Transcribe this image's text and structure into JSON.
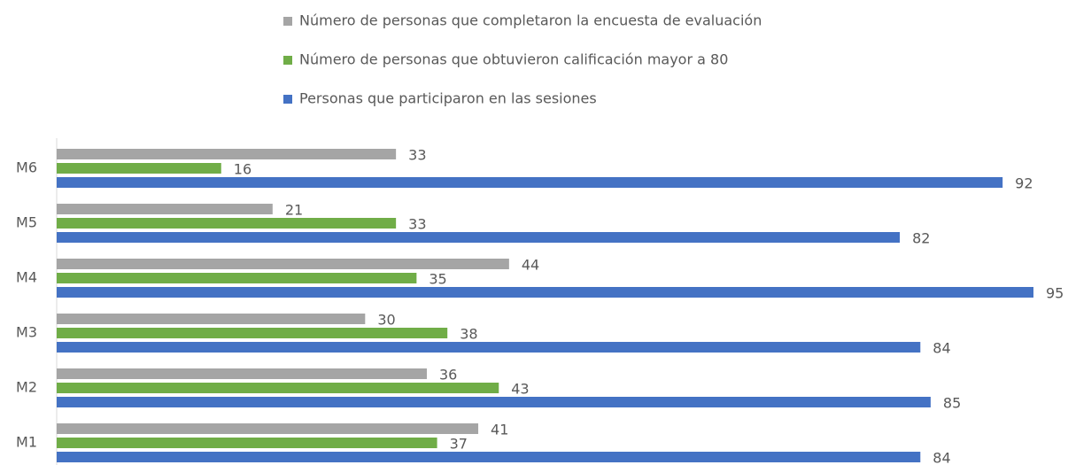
{
  "chart_data": {
    "type": "hbar",
    "categories": [
      "M1",
      "M2",
      "M3",
      "M4",
      "M5",
      "M6"
    ],
    "series": [
      {
        "name": "Número de personas que completaron la encuesta de evaluación",
        "color": "#a5a5a5",
        "values": [
          41,
          36,
          30,
          44,
          21,
          33
        ]
      },
      {
        "name": "Número de personas que obtuvieron calificación mayor a 80",
        "color": "#70ad47",
        "values": [
          37,
          43,
          38,
          35,
          33,
          16
        ]
      },
      {
        "name": "Personas que participaron en las sesiones",
        "color": "#4472c4",
        "values": [
          84,
          85,
          84,
          95,
          82,
          92
        ]
      }
    ],
    "legend": "top"
  }
}
